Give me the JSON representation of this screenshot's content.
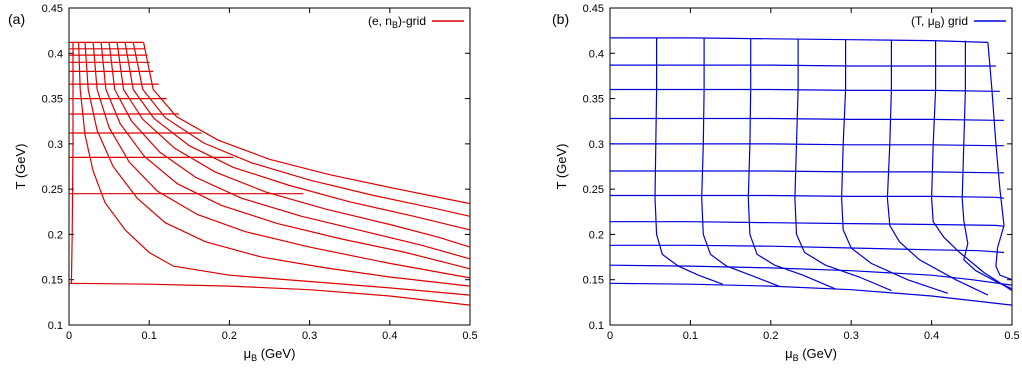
{
  "chart_data": [
    {
      "type": "line",
      "panel_label": "(a)",
      "xlabel_main": "μ",
      "xlabel_sub": "B",
      "xlabel_unit": " (GeV)",
      "ylabel": "T (GeV)",
      "xlim": [
        0,
        0.5
      ],
      "ylim": [
        0.1,
        0.45
      ],
      "xticks": [
        "0",
        "0.1",
        "0.2",
        "0.3",
        "0.4",
        "0.5"
      ],
      "yticks": [
        "0.1",
        "0.15",
        "0.2",
        "0.25",
        "0.3",
        "0.35",
        "0.4",
        "0.45"
      ],
      "legend": {
        "position": "top-right",
        "label_pre": "(e, n",
        "label_sub": "B",
        "label_post": ")-grid",
        "color": "#dd0000"
      },
      "color": "#dd0000",
      "horizontal_lines": [
        {
          "T": 0.412,
          "mu_max": 0.093
        },
        {
          "T": 0.405,
          "mu_max": 0.095
        },
        {
          "T": 0.398,
          "mu_max": 0.098
        },
        {
          "T": 0.39,
          "mu_max": 0.101
        },
        {
          "T": 0.38,
          "mu_max": 0.105
        },
        {
          "T": 0.366,
          "mu_max": 0.112
        },
        {
          "T": 0.35,
          "mu_max": 0.122
        },
        {
          "T": 0.333,
          "mu_max": 0.137
        },
        {
          "T": 0.312,
          "mu_max": 0.165
        },
        {
          "T": 0.285,
          "mu_max": 0.205
        },
        {
          "T": 0.245,
          "mu_max": 0.292
        }
      ],
      "bottom_curve": [
        [
          0,
          0.146
        ],
        [
          0.1,
          0.145
        ],
        [
          0.2,
          0.143
        ],
        [
          0.3,
          0.139
        ],
        [
          0.4,
          0.132
        ],
        [
          0.5,
          0.122
        ]
      ],
      "vertical_curves": [
        [
          [
            0.005,
            0.412
          ],
          [
            0.005,
            0.3
          ],
          [
            0.004,
            0.2
          ],
          [
            0.003,
            0.146
          ]
        ],
        [
          [
            0.012,
            0.412
          ],
          [
            0.014,
            0.36
          ],
          [
            0.02,
            0.31
          ],
          [
            0.03,
            0.27
          ],
          [
            0.045,
            0.235
          ],
          [
            0.07,
            0.205
          ],
          [
            0.1,
            0.18
          ],
          [
            0.13,
            0.165
          ],
          [
            0.2,
            0.155
          ],
          [
            0.3,
            0.148
          ],
          [
            0.4,
            0.141
          ],
          [
            0.5,
            0.133
          ]
        ],
        [
          [
            0.02,
            0.412
          ],
          [
            0.024,
            0.36
          ],
          [
            0.035,
            0.315
          ],
          [
            0.055,
            0.275
          ],
          [
            0.085,
            0.24
          ],
          [
            0.12,
            0.213
          ],
          [
            0.17,
            0.192
          ],
          [
            0.24,
            0.175
          ],
          [
            0.32,
            0.163
          ],
          [
            0.4,
            0.153
          ],
          [
            0.5,
            0.143
          ]
        ],
        [
          [
            0.03,
            0.412
          ],
          [
            0.035,
            0.36
          ],
          [
            0.05,
            0.318
          ],
          [
            0.075,
            0.28
          ],
          [
            0.11,
            0.248
          ],
          [
            0.16,
            0.222
          ],
          [
            0.22,
            0.203
          ],
          [
            0.3,
            0.186
          ],
          [
            0.4,
            0.168
          ],
          [
            0.5,
            0.152
          ]
        ],
        [
          [
            0.04,
            0.412
          ],
          [
            0.046,
            0.36
          ],
          [
            0.064,
            0.322
          ],
          [
            0.094,
            0.286
          ],
          [
            0.135,
            0.256
          ],
          [
            0.19,
            0.232
          ],
          [
            0.26,
            0.212
          ],
          [
            0.34,
            0.195
          ],
          [
            0.42,
            0.18
          ],
          [
            0.5,
            0.162
          ]
        ],
        [
          [
            0.05,
            0.412
          ],
          [
            0.057,
            0.36
          ],
          [
            0.078,
            0.325
          ],
          [
            0.113,
            0.291
          ],
          [
            0.158,
            0.263
          ],
          [
            0.215,
            0.24
          ],
          [
            0.29,
            0.22
          ],
          [
            0.37,
            0.203
          ],
          [
            0.44,
            0.188
          ],
          [
            0.5,
            0.173
          ]
        ],
        [
          [
            0.06,
            0.412
          ],
          [
            0.068,
            0.36
          ],
          [
            0.092,
            0.327
          ],
          [
            0.132,
            0.295
          ],
          [
            0.182,
            0.269
          ],
          [
            0.245,
            0.247
          ],
          [
            0.32,
            0.228
          ],
          [
            0.4,
            0.211
          ],
          [
            0.46,
            0.197
          ],
          [
            0.5,
            0.186
          ]
        ],
        [
          [
            0.07,
            0.412
          ],
          [
            0.08,
            0.36
          ],
          [
            0.106,
            0.328
          ],
          [
            0.15,
            0.298
          ],
          [
            0.205,
            0.274
          ],
          [
            0.275,
            0.254
          ],
          [
            0.35,
            0.236
          ],
          [
            0.43,
            0.22
          ],
          [
            0.5,
            0.205
          ]
        ],
        [
          [
            0.08,
            0.412
          ],
          [
            0.092,
            0.36
          ],
          [
            0.12,
            0.329
          ],
          [
            0.168,
            0.301
          ],
          [
            0.228,
            0.279
          ],
          [
            0.3,
            0.26
          ],
          [
            0.38,
            0.243
          ],
          [
            0.46,
            0.228
          ],
          [
            0.5,
            0.22
          ]
        ],
        [
          [
            0.093,
            0.412
          ],
          [
            0.105,
            0.36
          ],
          [
            0.134,
            0.33
          ],
          [
            0.186,
            0.304
          ],
          [
            0.25,
            0.283
          ],
          [
            0.325,
            0.266
          ],
          [
            0.41,
            0.25
          ],
          [
            0.5,
            0.234
          ]
        ]
      ]
    },
    {
      "type": "line",
      "panel_label": "(b)",
      "xlabel_main": "μ",
      "xlabel_sub": "B",
      "xlabel_unit": " (GeV)",
      "ylabel": "T (GeV)",
      "xlim": [
        0,
        0.5
      ],
      "ylim": [
        0.1,
        0.45
      ],
      "xticks": [
        "0",
        "0.1",
        "0.2",
        "0.3",
        "0.4",
        "0.5"
      ],
      "yticks": [
        "0.1",
        "0.15",
        "0.2",
        "0.25",
        "0.3",
        "0.35",
        "0.4",
        "0.45"
      ],
      "legend": {
        "position": "top-right",
        "label_pre": "(T",
        "label_mid": ", μ",
        "label_sub": "B",
        "label_post": ") grid",
        "color": "#0000dd"
      },
      "color": "#0000dd",
      "horizontal_curves": [
        [
          [
            0,
            0.146
          ],
          [
            0.1,
            0.145
          ],
          [
            0.2,
            0.143
          ],
          [
            0.3,
            0.139
          ],
          [
            0.4,
            0.132
          ],
          [
            0.5,
            0.122
          ]
        ],
        [
          [
            0,
            0.166
          ],
          [
            0.1,
            0.165
          ],
          [
            0.2,
            0.163
          ],
          [
            0.3,
            0.16
          ],
          [
            0.4,
            0.155
          ],
          [
            0.45,
            0.15
          ],
          [
            0.5,
            0.144
          ]
        ],
        [
          [
            0,
            0.188
          ],
          [
            0.1,
            0.188
          ],
          [
            0.2,
            0.187
          ],
          [
            0.3,
            0.185
          ],
          [
            0.4,
            0.183
          ],
          [
            0.46,
            0.182
          ],
          [
            0.49,
            0.18
          ]
        ],
        [
          [
            0,
            0.214
          ],
          [
            0.1,
            0.214
          ],
          [
            0.2,
            0.213
          ],
          [
            0.3,
            0.212
          ],
          [
            0.4,
            0.211
          ],
          [
            0.48,
            0.21
          ],
          [
            0.49,
            0.209
          ]
        ],
        [
          [
            0,
            0.243
          ],
          [
            0.1,
            0.243
          ],
          [
            0.2,
            0.243
          ],
          [
            0.3,
            0.242
          ],
          [
            0.4,
            0.242
          ],
          [
            0.48,
            0.241
          ],
          [
            0.49,
            0.24
          ]
        ],
        [
          [
            0,
            0.27
          ],
          [
            0.1,
            0.27
          ],
          [
            0.2,
            0.27
          ],
          [
            0.3,
            0.269
          ],
          [
            0.4,
            0.269
          ],
          [
            0.48,
            0.268
          ],
          [
            0.49,
            0.268
          ]
        ],
        [
          [
            0,
            0.3
          ],
          [
            0.1,
            0.3
          ],
          [
            0.2,
            0.3
          ],
          [
            0.3,
            0.299
          ],
          [
            0.4,
            0.299
          ],
          [
            0.48,
            0.298
          ],
          [
            0.49,
            0.298
          ]
        ],
        [
          [
            0,
            0.328
          ],
          [
            0.1,
            0.328
          ],
          [
            0.2,
            0.328
          ],
          [
            0.3,
            0.327
          ],
          [
            0.4,
            0.327
          ],
          [
            0.48,
            0.326
          ],
          [
            0.49,
            0.326
          ]
        ],
        [
          [
            0,
            0.36
          ],
          [
            0.1,
            0.36
          ],
          [
            0.2,
            0.36
          ],
          [
            0.3,
            0.359
          ],
          [
            0.4,
            0.359
          ],
          [
            0.48,
            0.358
          ],
          [
            0.485,
            0.358
          ]
        ],
        [
          [
            0,
            0.387
          ],
          [
            0.1,
            0.387
          ],
          [
            0.2,
            0.387
          ],
          [
            0.3,
            0.386
          ],
          [
            0.4,
            0.386
          ],
          [
            0.48,
            0.386
          ]
        ],
        [
          [
            0,
            0.417
          ],
          [
            0.1,
            0.417
          ],
          [
            0.2,
            0.416
          ],
          [
            0.3,
            0.415
          ],
          [
            0.4,
            0.414
          ],
          [
            0.47,
            0.412
          ]
        ]
      ],
      "vertical_curves": [
        [
          [
            0.058,
            0.417
          ],
          [
            0.058,
            0.36
          ],
          [
            0.057,
            0.3
          ],
          [
            0.056,
            0.24
          ],
          [
            0.058,
            0.2
          ],
          [
            0.065,
            0.178
          ],
          [
            0.085,
            0.165
          ],
          [
            0.11,
            0.155
          ],
          [
            0.14,
            0.145
          ]
        ],
        [
          [
            0.117,
            0.417
          ],
          [
            0.117,
            0.36
          ],
          [
            0.116,
            0.3
          ],
          [
            0.114,
            0.24
          ],
          [
            0.116,
            0.2
          ],
          [
            0.125,
            0.178
          ],
          [
            0.145,
            0.165
          ],
          [
            0.175,
            0.155
          ],
          [
            0.21,
            0.143
          ]
        ],
        [
          [
            0.175,
            0.416
          ],
          [
            0.175,
            0.36
          ],
          [
            0.174,
            0.3
          ],
          [
            0.172,
            0.24
          ],
          [
            0.174,
            0.2
          ],
          [
            0.183,
            0.178
          ],
          [
            0.205,
            0.166
          ],
          [
            0.24,
            0.155
          ],
          [
            0.28,
            0.14
          ]
        ],
        [
          [
            0.234,
            0.416
          ],
          [
            0.234,
            0.36
          ],
          [
            0.232,
            0.3
          ],
          [
            0.23,
            0.24
          ],
          [
            0.232,
            0.2
          ],
          [
            0.242,
            0.18
          ],
          [
            0.268,
            0.166
          ],
          [
            0.31,
            0.153
          ],
          [
            0.35,
            0.138
          ]
        ],
        [
          [
            0.293,
            0.415
          ],
          [
            0.293,
            0.36
          ],
          [
            0.29,
            0.3
          ],
          [
            0.288,
            0.24
          ],
          [
            0.29,
            0.205
          ],
          [
            0.3,
            0.185
          ],
          [
            0.325,
            0.168
          ],
          [
            0.37,
            0.15
          ],
          [
            0.42,
            0.135
          ]
        ],
        [
          [
            0.35,
            0.415
          ],
          [
            0.35,
            0.36
          ],
          [
            0.348,
            0.3
          ],
          [
            0.345,
            0.24
          ],
          [
            0.348,
            0.21
          ],
          [
            0.36,
            0.192
          ],
          [
            0.385,
            0.172
          ],
          [
            0.43,
            0.15
          ],
          [
            0.47,
            0.133
          ]
        ],
        [
          [
            0.405,
            0.414
          ],
          [
            0.405,
            0.36
          ],
          [
            0.402,
            0.3
          ],
          [
            0.4,
            0.24
          ],
          [
            0.402,
            0.214
          ],
          [
            0.415,
            0.197
          ],
          [
            0.435,
            0.18
          ],
          [
            0.465,
            0.158
          ],
          [
            0.5,
            0.138
          ]
        ],
        [
          [
            0.442,
            0.414
          ],
          [
            0.442,
            0.36
          ],
          [
            0.44,
            0.3
          ],
          [
            0.438,
            0.24
          ],
          [
            0.44,
            0.215
          ],
          [
            0.445,
            0.19
          ],
          [
            0.44,
            0.172
          ],
          [
            0.455,
            0.16
          ],
          [
            0.48,
            0.148
          ],
          [
            0.5,
            0.14
          ]
        ],
        [
          [
            0.47,
            0.412
          ],
          [
            0.475,
            0.36
          ],
          [
            0.48,
            0.3
          ],
          [
            0.485,
            0.25
          ],
          [
            0.49,
            0.21
          ],
          [
            0.482,
            0.185
          ],
          [
            0.48,
            0.165
          ],
          [
            0.485,
            0.155
          ],
          [
            0.5,
            0.15
          ]
        ]
      ]
    }
  ]
}
